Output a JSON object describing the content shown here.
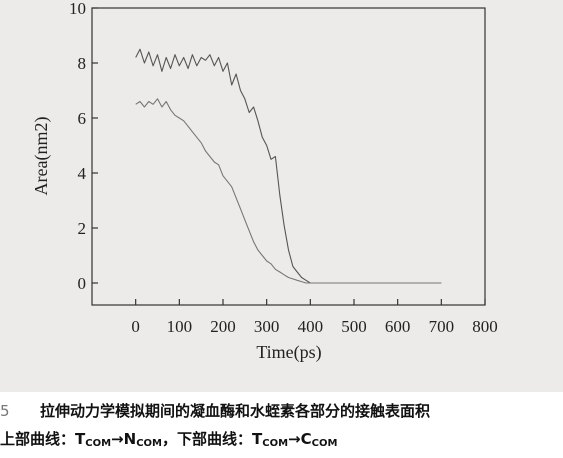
{
  "chart_data": {
    "type": "line",
    "title": "",
    "xlabel": "Time(ps)",
    "ylabel": "Area(nm2)",
    "xlim": [
      -100,
      800
    ],
    "ylim": [
      -0.8,
      10
    ],
    "x_ticks": [
      0,
      100,
      200,
      300,
      400,
      500,
      600,
      700,
      800
    ],
    "y_ticks": [
      0,
      2,
      4,
      6,
      8,
      10
    ],
    "grid": false,
    "series": [
      {
        "color": "#555555",
        "points": [
          [
            0,
            8.2
          ],
          [
            10,
            8.5
          ],
          [
            20,
            8.0
          ],
          [
            30,
            8.4
          ],
          [
            40,
            7.9
          ],
          [
            50,
            8.3
          ],
          [
            60,
            7.7
          ],
          [
            70,
            8.2
          ],
          [
            80,
            7.8
          ],
          [
            90,
            8.3
          ],
          [
            100,
            7.9
          ],
          [
            110,
            8.2
          ],
          [
            120,
            7.8
          ],
          [
            130,
            8.3
          ],
          [
            140,
            7.9
          ],
          [
            150,
            8.2
          ],
          [
            160,
            8.1
          ],
          [
            170,
            8.3
          ],
          [
            180,
            7.9
          ],
          [
            190,
            8.2
          ],
          [
            200,
            7.7
          ],
          [
            210,
            8.0
          ],
          [
            220,
            7.2
          ],
          [
            230,
            7.6
          ],
          [
            240,
            7.0
          ],
          [
            250,
            6.7
          ],
          [
            260,
            6.2
          ],
          [
            270,
            6.4
          ],
          [
            280,
            5.9
          ],
          [
            290,
            5.3
          ],
          [
            300,
            5.0
          ],
          [
            310,
            4.5
          ],
          [
            320,
            4.6
          ],
          [
            330,
            3.2
          ],
          [
            340,
            2.1
          ],
          [
            350,
            1.2
          ],
          [
            360,
            0.6
          ],
          [
            370,
            0.4
          ],
          [
            380,
            0.2
          ],
          [
            390,
            0.1
          ],
          [
            400,
            0.0
          ],
          [
            450,
            0.0
          ],
          [
            500,
            0.0
          ],
          [
            550,
            0.0
          ],
          [
            600,
            0.0
          ],
          [
            650,
            0.0
          ],
          [
            700,
            0.0
          ]
        ]
      },
      {
        "color": "#777777",
        "points": [
          [
            0,
            6.5
          ],
          [
            10,
            6.6
          ],
          [
            20,
            6.4
          ],
          [
            30,
            6.6
          ],
          [
            40,
            6.5
          ],
          [
            50,
            6.7
          ],
          [
            60,
            6.4
          ],
          [
            70,
            6.6
          ],
          [
            80,
            6.3
          ],
          [
            90,
            6.1
          ],
          [
            100,
            6.0
          ],
          [
            110,
            5.9
          ],
          [
            120,
            5.7
          ],
          [
            130,
            5.5
          ],
          [
            140,
            5.3
          ],
          [
            150,
            5.1
          ],
          [
            160,
            4.8
          ],
          [
            170,
            4.6
          ],
          [
            180,
            4.4
          ],
          [
            190,
            4.3
          ],
          [
            200,
            3.9
          ],
          [
            210,
            3.7
          ],
          [
            220,
            3.5
          ],
          [
            230,
            3.1
          ],
          [
            240,
            2.7
          ],
          [
            250,
            2.3
          ],
          [
            260,
            1.9
          ],
          [
            270,
            1.5
          ],
          [
            280,
            1.2
          ],
          [
            290,
            1.0
          ],
          [
            300,
            0.8
          ],
          [
            310,
            0.7
          ],
          [
            320,
            0.5
          ],
          [
            330,
            0.4
          ],
          [
            340,
            0.3
          ],
          [
            350,
            0.2
          ],
          [
            360,
            0.15
          ],
          [
            370,
            0.1
          ],
          [
            380,
            0.05
          ],
          [
            390,
            0.0
          ],
          [
            400,
            0.0
          ],
          [
            450,
            0.0
          ],
          [
            500,
            0.0
          ],
          [
            550,
            0.0
          ],
          [
            600,
            0.0
          ],
          [
            650,
            0.0
          ],
          [
            700,
            0.0
          ]
        ]
      }
    ]
  },
  "caption": {
    "line1_prefix": "5",
    "line1_text": "拉伸动力学模拟期间的凝血酶和水蛭素各部分的接触表面积",
    "line2_upper_label": "上部曲线：",
    "line2_lower_label": "，下部曲线：",
    "t_main": "T",
    "n_main": "N",
    "c_main": "C",
    "com_sub": "COM",
    "arrow": "→"
  }
}
